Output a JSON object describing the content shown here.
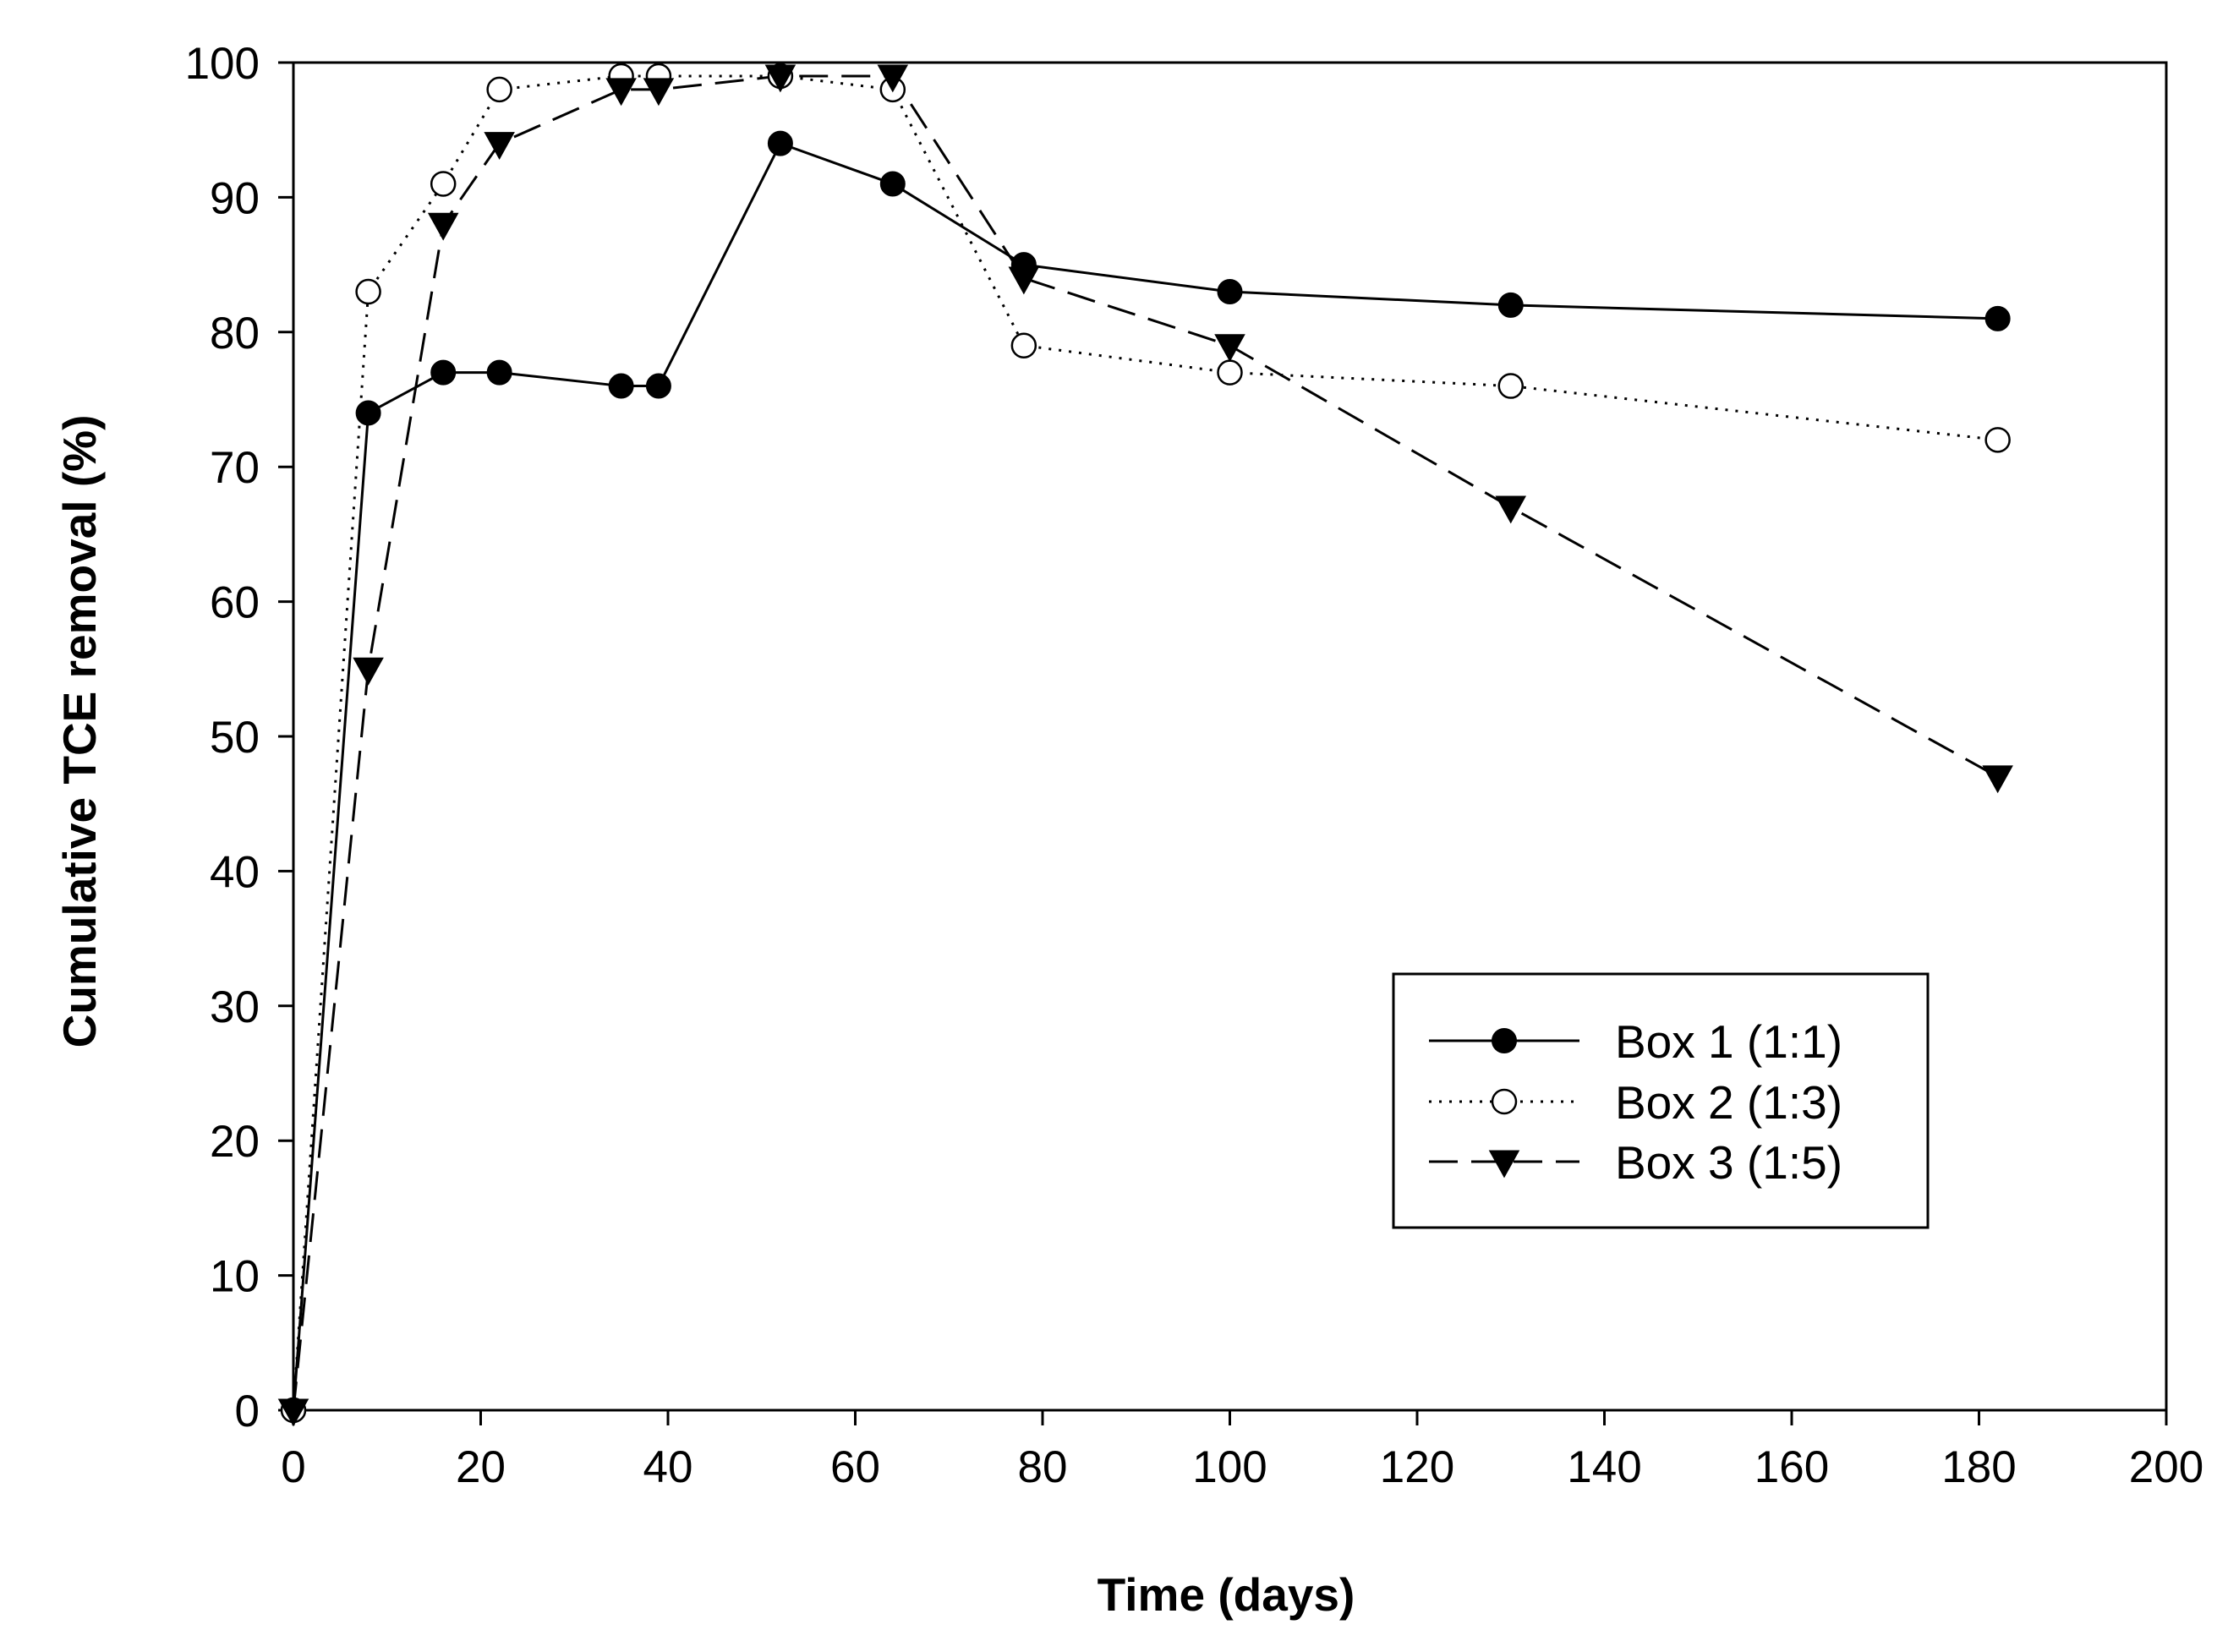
{
  "chart_data": {
    "type": "line",
    "title": "",
    "xlabel": "Time (days)",
    "ylabel": "Cumulative TCE removal (%)",
    "xlim": [
      0,
      200
    ],
    "ylim": [
      0,
      100
    ],
    "x_ticks": [
      0,
      20,
      40,
      60,
      80,
      100,
      120,
      140,
      160,
      180,
      200
    ],
    "y_ticks": [
      0,
      10,
      20,
      30,
      40,
      50,
      60,
      70,
      80,
      90,
      100
    ],
    "grid": false,
    "legend_position": "lower-right",
    "series": [
      {
        "name": "Box 1 (1:1)",
        "marker": "filled-circle",
        "line_style": "solid",
        "x": [
          0,
          8,
          16,
          22,
          35,
          39,
          52,
          64,
          78,
          100,
          130,
          182
        ],
        "y": [
          0,
          74,
          77,
          77,
          76,
          76,
          94,
          91,
          85,
          83,
          82,
          81
        ]
      },
      {
        "name": "Box 2 (1:3)",
        "marker": "open-circle",
        "line_style": "dotted",
        "x": [
          0,
          8,
          16,
          22,
          35,
          39,
          52,
          64,
          78,
          100,
          130,
          182
        ],
        "y": [
          0,
          83,
          91,
          98,
          99,
          99,
          99,
          98,
          79,
          77,
          76,
          72
        ]
      },
      {
        "name": "Box 3 (1:5)",
        "marker": "filled-triangle-down",
        "line_style": "dashed",
        "x": [
          0,
          8,
          16,
          22,
          35,
          39,
          52,
          64,
          78,
          100,
          130,
          182
        ],
        "y": [
          0,
          55,
          88,
          94,
          98,
          98,
          99,
          99,
          84,
          79,
          67,
          47
        ]
      }
    ]
  }
}
